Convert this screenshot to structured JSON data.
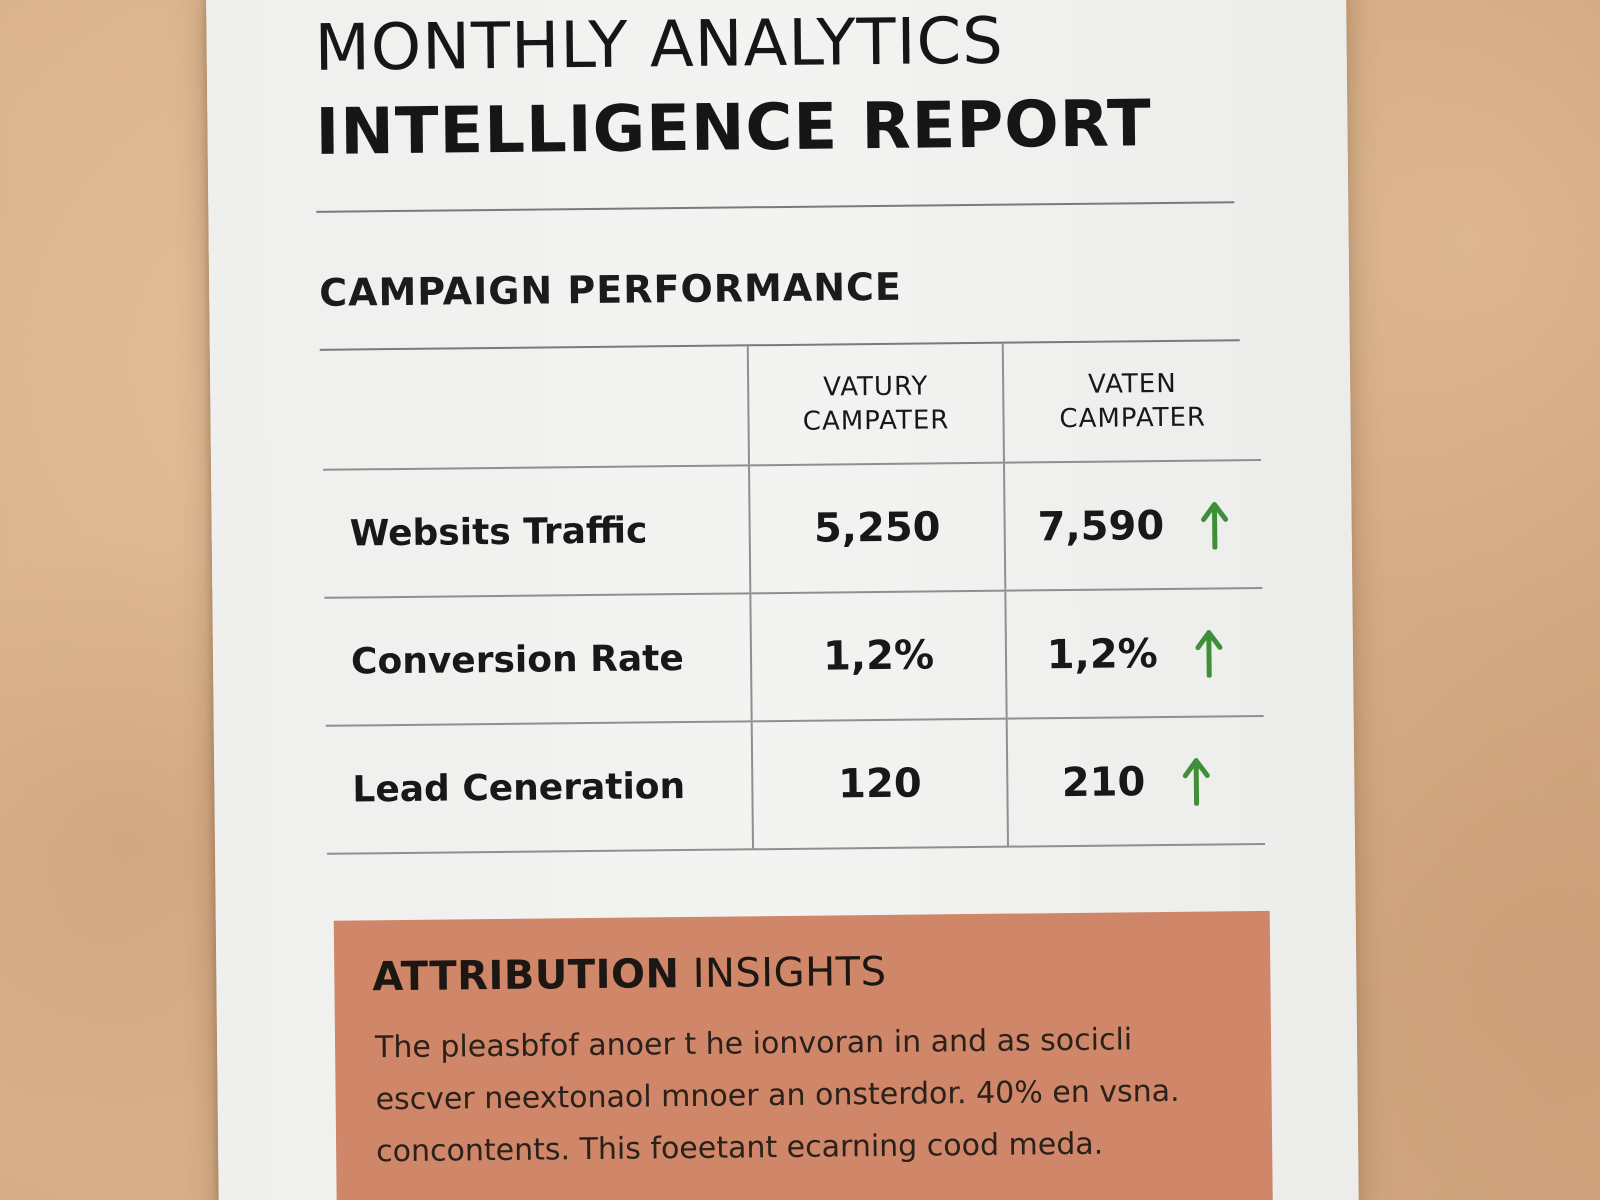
{
  "report": {
    "title_line1": "MONTHLY ANALYTICS",
    "title_line2": "INTELLIGENCE REPORT"
  },
  "campaign": {
    "section_title": "CAMPAIGN PERFORMANCE",
    "columns": [
      {
        "line1": "VATURY",
        "line2": "CAMPATER"
      },
      {
        "line1": "VATEN",
        "line2": "CAMPATER"
      }
    ],
    "rows": [
      {
        "label": "Websits Traffic",
        "a": "5,250",
        "b": "7,590",
        "trend": "up-arrow-icon"
      },
      {
        "label": "Conversion Rate",
        "a": "1,2%",
        "b": "1,2%",
        "trend": "up-arrow-icon"
      },
      {
        "label": "Lead Ceneration",
        "a": "120",
        "b": "210",
        "trend": "up-arrow-icon"
      }
    ],
    "trend_color": "#3f8f3a"
  },
  "insights": {
    "title_bold": "ATTRIBUTION",
    "title_light": " INSIGHTS",
    "body": "The pleasbfof anoer t he ionvoran in and as socicli escver neextonaol mnoer an onsterdor. 40% en vsna. concontents. This foeetant ecarning cood meda.",
    "background": "#cf8669"
  }
}
